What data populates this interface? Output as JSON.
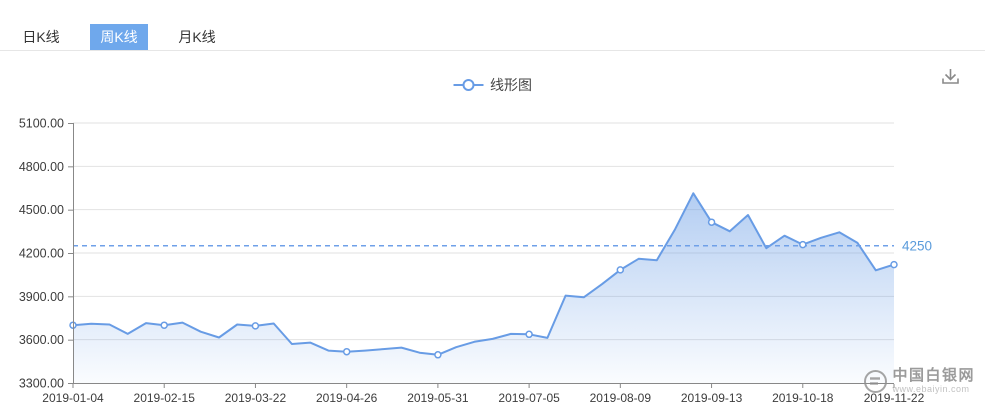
{
  "tabs": [
    {
      "label": "日K线",
      "active": false
    },
    {
      "label": "周K线",
      "active": true
    },
    {
      "label": "月K线",
      "active": false
    }
  ],
  "legend": {
    "label": "线形图"
  },
  "toolbar": {
    "download_icon": "download-arrow"
  },
  "watermark": {
    "title": "中国白银网",
    "url": "www.ebaiyin.com",
    "logo_icon": "circle-e-logo"
  },
  "colors": {
    "accent_tab": "#6FA8EC",
    "line": "#689CE5",
    "area_top": "rgba(104,156,229,0.50)",
    "area_bottom": "rgba(104,156,229,0.03)",
    "markline": "#6FA0E8",
    "markline_label": "#5A9BDB",
    "grid": "#E2E2E2",
    "axis": "#888888",
    "axis_text": "#3C3C3C"
  },
  "chart_data": {
    "type": "line",
    "series_name": "线形图",
    "x_labels": [
      "2019-01-04",
      "2019-02-15",
      "2019-03-22",
      "2019-04-26",
      "2019-05-31",
      "2019-07-05",
      "2019-08-09",
      "2019-09-13",
      "2019-10-18",
      "2019-11-22"
    ],
    "label_step": 5,
    "values": [
      3700,
      3710,
      3705,
      3640,
      3715,
      3700,
      3718,
      3655,
      3615,
      3705,
      3695,
      3712,
      3570,
      3580,
      3524,
      3517,
      3524,
      3535,
      3545,
      3510,
      3495,
      3548,
      3585,
      3605,
      3640,
      3637,
      3612,
      3905,
      3893,
      3985,
      4083,
      4160,
      4150,
      4365,
      4613,
      4413,
      4350,
      4463,
      4233,
      4320,
      4258,
      4305,
      4343,
      4270,
      4080,
      4120
    ],
    "ylim": [
      3300,
      5100
    ],
    "y_tick_step": 300,
    "y_tick_labels": [
      "3300.00",
      "3600.00",
      "3900.00",
      "4200.00",
      "4500.00",
      "4800.00",
      "5100.00"
    ],
    "markline": {
      "value": 4250,
      "label": "4250"
    },
    "grid": true,
    "legend_position": "top-center",
    "marker": "empty-circle-at-labeled-points"
  }
}
